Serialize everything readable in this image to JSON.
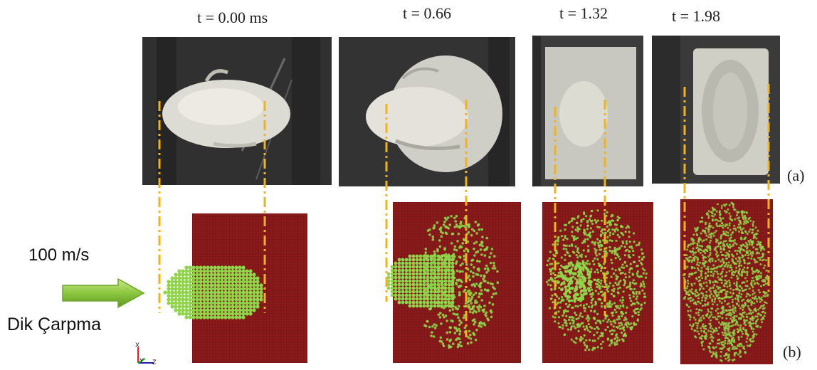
{
  "time_labels": [
    "t = 0.00 ms",
    "t = 0.66",
    "t = 1.32",
    "t = 1.98"
  ],
  "row_labels": {
    "experiment": "(a)",
    "simulation": "(b)"
  },
  "impact": {
    "speed": "100 m/s",
    "mode": "Dik Çarpma"
  },
  "axis_triad": {
    "x": "X",
    "y": "Y",
    "z": "Z"
  },
  "colors": {
    "guide": "#f2b21c",
    "plate": "#8b1a1a",
    "particles": "#8fd44a",
    "arrow": "#8cc63f"
  }
}
